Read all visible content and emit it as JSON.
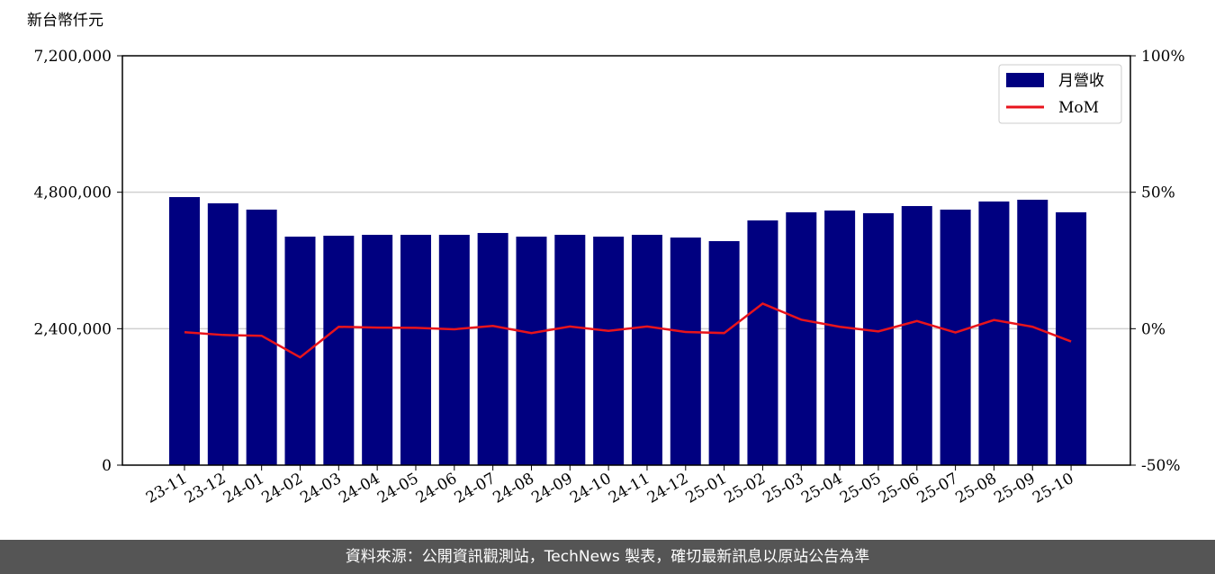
{
  "chart_data": {
    "type": "bar_line",
    "ylabel": "新台幣仟元",
    "categories": [
      "23-11",
      "23-12",
      "24-01",
      "24-02",
      "24-03",
      "24-04",
      "24-05",
      "24-06",
      "24-07",
      "24-08",
      "24-09",
      "24-10",
      "24-11",
      "24-12",
      "25-01",
      "25-02",
      "25-03",
      "25-04",
      "25-05",
      "25-06",
      "25-07",
      "25-08",
      "25-09",
      "25-10"
    ],
    "series": [
      {
        "name": "月營收",
        "color": "#000080",
        "type": "bar",
        "values": [
          4715000,
          4605000,
          4494000,
          4019000,
          4035000,
          4051000,
          4051000,
          4051000,
          4083000,
          4019000,
          4051000,
          4019000,
          4051000,
          4003000,
          3940000,
          4304000,
          4447000,
          4478000,
          4431000,
          4557000,
          4494000,
          4637000,
          4668000,
          4447000
        ]
      },
      {
        "name": "MoM",
        "color": "#e8141c",
        "type": "line",
        "axis": "y2",
        "values": [
          -1.3,
          -2.3,
          -2.6,
          -10.5,
          0.7,
          0.4,
          0.3,
          -0.2,
          1.0,
          -1.6,
          0.8,
          -0.8,
          0.8,
          -1.2,
          -1.6,
          9.2,
          3.3,
          0.7,
          -1.0,
          2.8,
          -1.4,
          3.2,
          0.7,
          -4.7
        ]
      }
    ],
    "ylim": [
      0,
      7200000
    ],
    "yticks": [
      0,
      {
        "value": 2400000,
        "label": "2,400,000"
      },
      {
        "value": 4800000,
        "label": "4,800,000"
      },
      {
        "value": 7200000,
        "label": "7,200,000"
      }
    ],
    "y2lim": [
      -50,
      100
    ],
    "y2ticks": [
      {
        "value": -50,
        "label": "-50%"
      },
      {
        "value": 0,
        "label": "0%"
      },
      {
        "value": 50,
        "label": "50%"
      },
      {
        "value": 100,
        "label": "100%"
      }
    ],
    "grid": true,
    "legend": "upper right",
    "footer": "資料來源：公開資訊觀測站，TechNews 製表，確切最新訊息以原站公告為準"
  }
}
